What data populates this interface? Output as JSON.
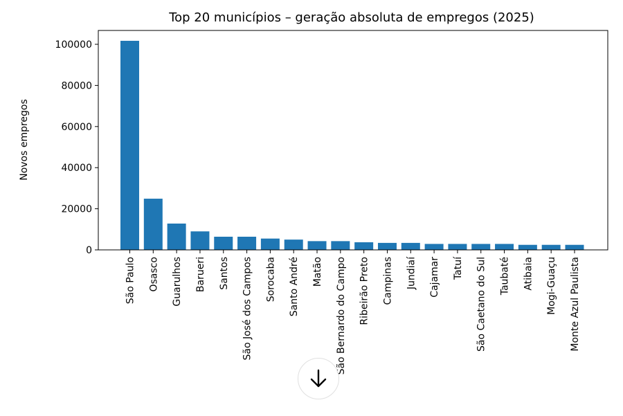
{
  "chart_data": {
    "type": "bar",
    "title": "Top 20 municípios – geração absoluta de empregos (2025)",
    "xlabel": "",
    "ylabel": "Novos empregos",
    "ylim": [
      0,
      106000
    ],
    "yticks": [
      0,
      20000,
      40000,
      60000,
      80000,
      100000
    ],
    "ytick_labels": [
      "0",
      "20000",
      "40000",
      "60000",
      "80000",
      "100000"
    ],
    "bar_color": "#1f77b4",
    "grid": false,
    "categories": [
      "São Paulo",
      "Osasco",
      "Guarulhos",
      "Barueri",
      "Santos",
      "São José dos Campos",
      "Sorocaba",
      "Santo André",
      "Matão",
      "São Bernardo do Campo",
      "Ribeirão Preto",
      "Campinas",
      "Jundiaí",
      "Cajamar",
      "Tatuí",
      "São Caetano do Sul",
      "Taubaté",
      "Atibaia",
      "Mogi-Guaçu",
      "Monte Azul Paulista"
    ],
    "values": [
      101700,
      24900,
      12800,
      9000,
      6400,
      6400,
      5500,
      5000,
      4250,
      4250,
      3700,
      3400,
      3400,
      2900,
      2900,
      2900,
      2900,
      2450,
      2450,
      2450
    ]
  },
  "scroll_button": {
    "icon": "arrow-down-icon"
  }
}
